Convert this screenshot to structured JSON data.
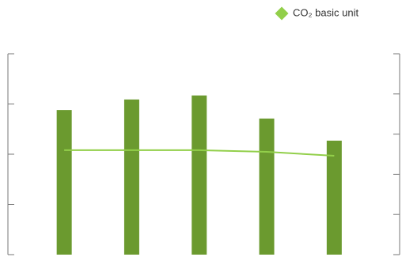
{
  "chart_data": {
    "type": "bar",
    "categories": [
      null,
      null,
      null,
      null,
      null
    ],
    "series": [
      {
        "color": "#6b9a2f",
        "values": [
          2.88,
          3.09,
          3.17,
          2.71,
          2.27
        ]
      },
      {
        "name": "CO₂ basic unit",
        "type": "line",
        "axis": "y2",
        "color": "#92cf4a",
        "values": [
          2.6,
          2.6,
          2.6,
          2.56,
          2.46
        ]
      }
    ],
    "ylim": [
      0,
      4
    ],
    "yticks": [
      0,
      1,
      2,
      3,
      4
    ],
    "y2lim": [
      0,
      5
    ],
    "y2ticks": [
      0,
      1,
      2,
      3,
      4,
      5
    ],
    "legend": "top-right"
  }
}
